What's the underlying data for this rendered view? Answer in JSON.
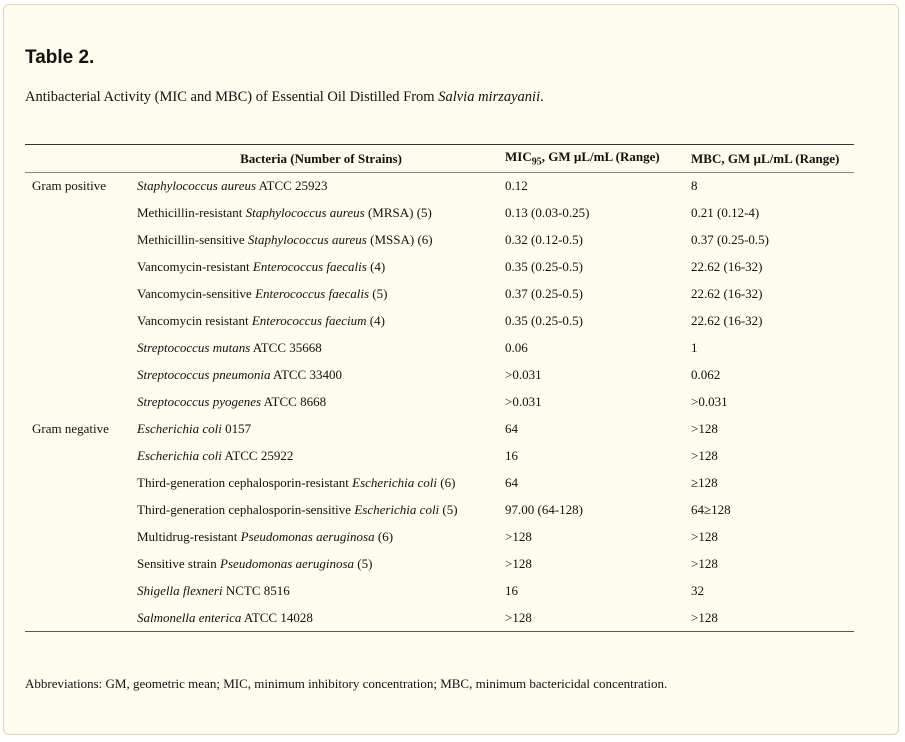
{
  "title": "Table 2.",
  "caption": {
    "prefix": "Antibacterial Activity (MIC and MBC) of Essential Oil Distilled From ",
    "species": "Salvia mirzayanii",
    "suffix": "."
  },
  "headers": {
    "group": "",
    "bacteria": "Bacteria (Number of Strains)",
    "mic_prefix": "MIC",
    "mic_sub": "95",
    "mic_suffix": ", GM µL/mL (Range)",
    "mbc": "MBC, GM µL/mL (Range)"
  },
  "rows": [
    {
      "group": "Gram positive",
      "name": [
        {
          "t": "Staphylococcus aureus",
          "i": true
        },
        {
          "t": " ATCC 25923",
          "i": false
        }
      ],
      "mic": "0.12",
      "mbc": "8"
    },
    {
      "group": "",
      "name": [
        {
          "t": "Methicillin-resistant ",
          "i": false
        },
        {
          "t": "Staphylococcus aureus",
          "i": true
        },
        {
          "t": " (MRSA) (5)",
          "i": false
        }
      ],
      "mic": "0.13 (0.03-0.25)",
      "mbc": "0.21 (0.12-4)"
    },
    {
      "group": "",
      "name": [
        {
          "t": "Methicillin-sensitive ",
          "i": false
        },
        {
          "t": "Staphylococcus aureus",
          "i": true
        },
        {
          "t": " (MSSA) (6)",
          "i": false
        }
      ],
      "mic": "0.32 (0.12-0.5)",
      "mbc": "0.37 (0.25-0.5)"
    },
    {
      "group": "",
      "name": [
        {
          "t": "Vancomycin-resistant ",
          "i": false
        },
        {
          "t": "Enterococcus faecalis",
          "i": true
        },
        {
          "t": " (4)",
          "i": false
        }
      ],
      "mic": "0.35 (0.25-0.5)",
      "mbc": "22.62 (16-32)"
    },
    {
      "group": "",
      "name": [
        {
          "t": "Vancomycin-sensitive ",
          "i": false
        },
        {
          "t": "Enterococcus faecalis",
          "i": true
        },
        {
          "t": " (5)",
          "i": false
        }
      ],
      "mic": "0.37 (0.25-0.5)",
      "mbc": "22.62 (16-32)"
    },
    {
      "group": "",
      "name": [
        {
          "t": "Vancomycin resistant ",
          "i": false
        },
        {
          "t": "Enterococcus faecium",
          "i": true
        },
        {
          "t": " (4)",
          "i": false
        }
      ],
      "mic": "0.35 (0.25-0.5)",
      "mbc": "22.62 (16-32)"
    },
    {
      "group": "",
      "name": [
        {
          "t": "Streptococcus mutans",
          "i": true
        },
        {
          "t": " ATCC 35668",
          "i": false
        }
      ],
      "mic": "0.06",
      "mbc": "1"
    },
    {
      "group": "",
      "name": [
        {
          "t": "Streptococcus pneumonia",
          "i": true
        },
        {
          "t": " ATCC 33400",
          "i": false
        }
      ],
      "mic": ">0.031",
      "mbc": "0.062"
    },
    {
      "group": "",
      "name": [
        {
          "t": "Streptococcus pyogenes",
          "i": true
        },
        {
          "t": " ATCC 8668",
          "i": false
        }
      ],
      "mic": ">0.031",
      "mbc": ">0.031"
    },
    {
      "group": "Gram negative",
      "name": [
        {
          "t": "Escherichia coli",
          "i": true
        },
        {
          "t": " 0157",
          "i": false
        }
      ],
      "mic": "64",
      "mbc": ">128"
    },
    {
      "group": "",
      "name": [
        {
          "t": "Escherichia coli",
          "i": true
        },
        {
          "t": " ATCC 25922",
          "i": false
        }
      ],
      "mic": "16",
      "mbc": ">128"
    },
    {
      "group": "",
      "name": [
        {
          "t": "Third-generation cephalosporin-resistant ",
          "i": false
        },
        {
          "t": "Escherichia coli",
          "i": true
        },
        {
          "t": " (6)",
          "i": false
        }
      ],
      "mic": "64",
      "mbc": "≥128"
    },
    {
      "group": "",
      "name": [
        {
          "t": "Third-generation cephalosporin-sensitive ",
          "i": false
        },
        {
          "t": "Escherichia coli",
          "i": true
        },
        {
          "t": " (5)",
          "i": false
        }
      ],
      "mic": "97.00 (64-128)",
      "mbc": "64≥128"
    },
    {
      "group": "",
      "name": [
        {
          "t": "Multidrug-resistant ",
          "i": false
        },
        {
          "t": "Pseudomonas aeruginosa",
          "i": true
        },
        {
          "t": " (6)",
          "i": false
        }
      ],
      "mic": ">128",
      "mbc": ">128"
    },
    {
      "group": "",
      "name": [
        {
          "t": "Sensitive strain ",
          "i": false
        },
        {
          "t": "Pseudomonas aeruginosa",
          "i": true
        },
        {
          "t": " (5)",
          "i": false
        }
      ],
      "mic": ">128",
      "mbc": ">128"
    },
    {
      "group": "",
      "name": [
        {
          "t": "Shigella flexneri",
          "i": true
        },
        {
          "t": " NCTC 8516",
          "i": false
        }
      ],
      "mic": "16",
      "mbc": "32"
    },
    {
      "group": "",
      "name": [
        {
          "t": "Salmonella enterica",
          "i": true
        },
        {
          "t": " ATCC 14028",
          "i": false
        }
      ],
      "mic": ">128",
      "mbc": ">128"
    }
  ],
  "footnote": "Abbreviations: GM, geometric mean; MIC, minimum inhibitory concentration; MBC, minimum bactericidal concentration."
}
